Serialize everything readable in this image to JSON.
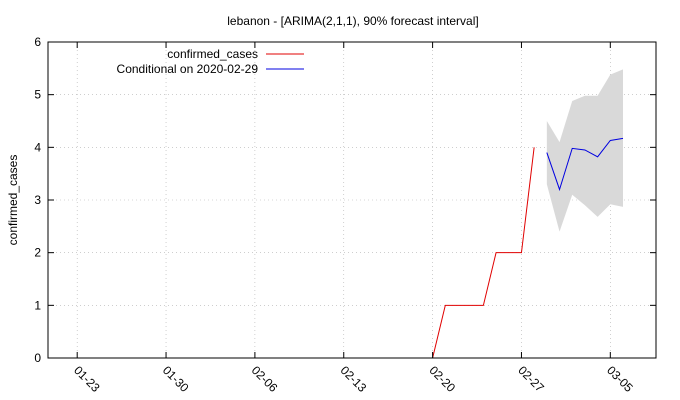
{
  "chart_data": {
    "type": "line",
    "title": "lebanon -  [ARIMA(2,1,1), 90% forecast interval]",
    "xlabel": "",
    "ylabel": "confirmed_cases",
    "ylim": [
      0,
      6
    ],
    "yticks": [
      "0",
      "1",
      "2",
      "3",
      "4",
      "5",
      "6"
    ],
    "x_ticks": [
      "01-23",
      "01-30",
      "02-06",
      "02-13",
      "02-20",
      "02-27",
      "03-05"
    ],
    "x_tick_days": [
      0,
      7,
      14,
      21,
      28,
      35,
      42
    ],
    "xlim_days": [
      -2.3,
      45.6
    ],
    "grid": true,
    "legend": "top-left",
    "series": [
      {
        "name": "confirmed_cases",
        "color": "#e00000",
        "x": [
          "2020-02-20",
          "2020-02-21",
          "2020-02-22",
          "2020-02-23",
          "2020-02-24",
          "2020-02-25",
          "2020-02-26",
          "2020-02-27",
          "2020-02-28"
        ],
        "x_days": [
          28,
          29,
          30,
          31,
          32,
          33,
          34,
          35,
          36
        ],
        "values": [
          0,
          1,
          1,
          1,
          1,
          2,
          2,
          2,
          4
        ]
      },
      {
        "name": "Conditional on 2020-02-29",
        "color": "#0000e0",
        "x": [
          "2020-02-29",
          "2020-03-01",
          "2020-03-02",
          "2020-03-03",
          "2020-03-04",
          "2020-03-05",
          "2020-03-06"
        ],
        "x_days": [
          37,
          38,
          39,
          40,
          41,
          42,
          43
        ],
        "values": [
          3.9,
          3.2,
          3.98,
          3.95,
          3.82,
          4.13,
          4.17
        ]
      }
    ],
    "interval": {
      "color": "#d9d9d9",
      "x_days": [
        37,
        38,
        39,
        40,
        41,
        42,
        43
      ],
      "lower": [
        3.3,
        2.4,
        3.1,
        2.9,
        2.68,
        2.92,
        2.87
      ],
      "upper": [
        4.5,
        4.1,
        4.88,
        4.98,
        4.98,
        5.38,
        5.48
      ]
    }
  }
}
